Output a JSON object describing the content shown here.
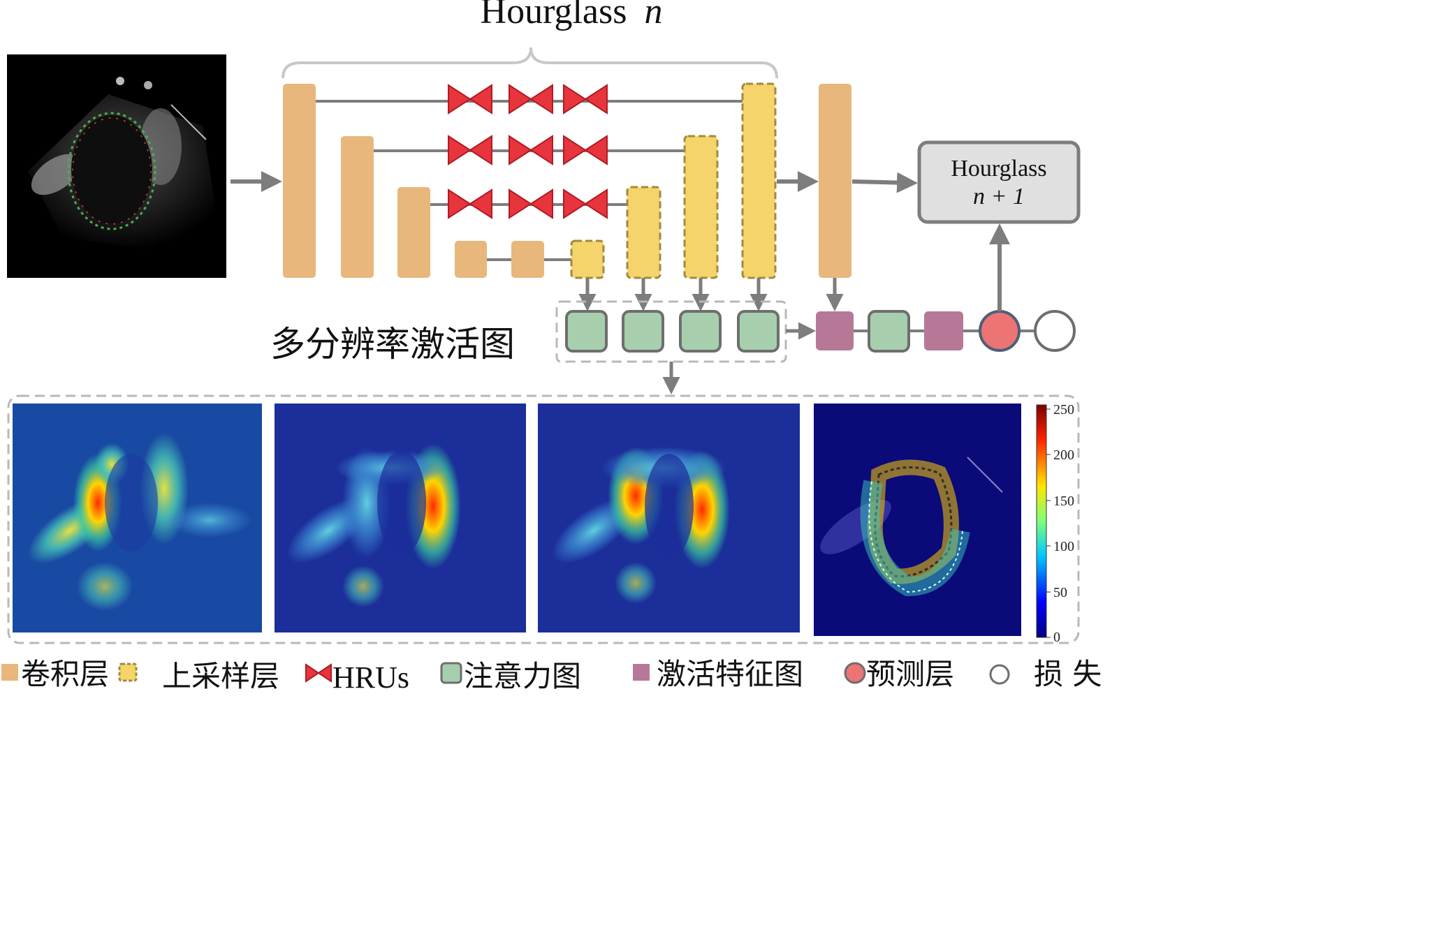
{
  "hourglass_title": {
    "word": "Hourglass",
    "var": "n"
  },
  "hourglass_next": {
    "line1": "Hourglass",
    "line2": "n + 1"
  },
  "multi_res_label": "多分辨率激活图",
  "colorbar": {
    "ticks": [
      "250",
      "200",
      "150",
      "100",
      "50",
      "0"
    ]
  },
  "legend": [
    {
      "label": "卷积层",
      "icon": "orange-square"
    },
    {
      "label": "上采样层",
      "icon": "yellow-dashed-square"
    },
    {
      "label": "HRUs",
      "icon": "red-bowtie"
    },
    {
      "label": "注意力图",
      "icon": "green-rounded-square"
    },
    {
      "label": "激活特征图",
      "icon": "purple-square"
    },
    {
      "label": "预测层",
      "icon": "red-circle"
    },
    {
      "label": "损 失",
      "icon": "white-circle"
    }
  ],
  "colors": {
    "conv": "#e8b77c",
    "upsample": "#f5d46c",
    "upsample_border": "#a08a3c",
    "hru": "#e8343c",
    "attention": "#a7cfae",
    "activation": "#b77898",
    "prediction": "#ec7474",
    "arrow": "#7d7d7d",
    "box_fill": "#e0e0e0"
  }
}
